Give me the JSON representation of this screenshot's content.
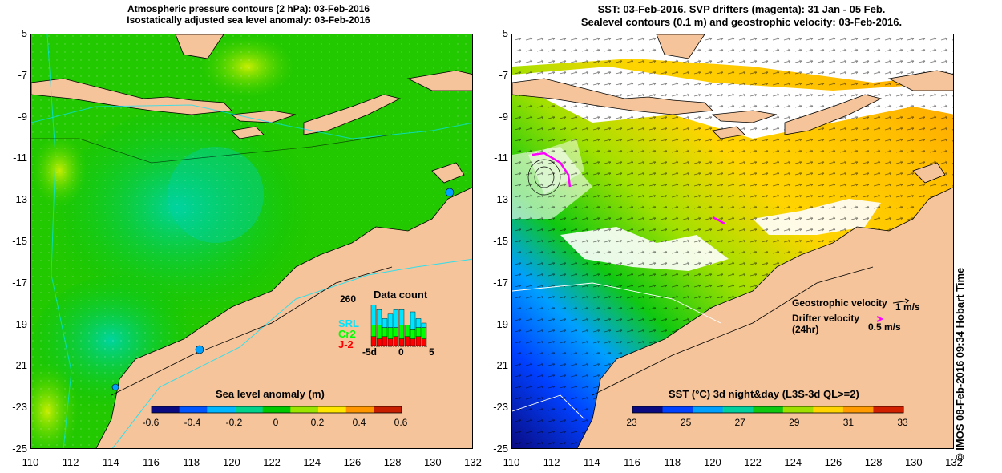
{
  "left_panel": {
    "title_line1": "Atmospheric pressure contours (2 hPa): 03-Feb-2016",
    "title_line2": "Isostatically adjusted sea level anomaly: 03-Feb-2016",
    "colorbar": {
      "title": "Sea level anomaly (m)",
      "ticks": [
        "-0.6",
        "-0.4",
        "-0.2",
        "0",
        "0.2",
        "0.4",
        "0.6"
      ]
    },
    "data_count": {
      "title": "Data count",
      "max_label": "260",
      "satellites": [
        {
          "label": "SRL",
          "color": "#00e5ff"
        },
        {
          "label": "Cr2",
          "color": "#00ff00"
        },
        {
          "label": "J-2",
          "color": "#ff0000"
        }
      ],
      "x_ticks": [
        "-5d",
        "0",
        "5"
      ],
      "bars": [
        {
          "j2": 0.2,
          "cr2": 0.25,
          "srl": 0.45
        },
        {
          "j2": 0.15,
          "cr2": 0.3,
          "srl": 0.35
        },
        {
          "j2": 0.2,
          "cr2": 0.2,
          "srl": 0.2
        },
        {
          "j2": 0.15,
          "cr2": 0.25,
          "srl": 0.3
        },
        {
          "j2": 0.2,
          "cr2": 0.2,
          "srl": 0.4
        },
        {
          "j2": 0.15,
          "cr2": 0.3,
          "srl": 0.35
        },
        {
          "j2": 0.2,
          "cr2": 0.25,
          "srl": 0.0
        },
        {
          "j2": 0.15,
          "cr2": 0.2,
          "srl": 0.4
        },
        {
          "j2": 0.2,
          "cr2": 0.2,
          "srl": 0.2
        },
        {
          "j2": 0.15,
          "cr2": 0.25,
          "srl": 0.1
        }
      ]
    }
  },
  "right_panel": {
    "title_line1": "SST: 03-Feb-2016. SVP drifters (magenta): 31 Jan - 05 Feb.",
    "title_line2": "Sealevel contours (0.1 m) and geostrophic velocity: 03-Feb-2016.",
    "colorbar": {
      "title": "SST (°C) 3d night&day (L3S-3d QL>=2)",
      "ticks": [
        "23",
        "25",
        "27",
        "29",
        "31",
        "33"
      ]
    },
    "legend": {
      "geostrophic_label": "Geostrophic velocity",
      "geostrophic_value": "1 m/s",
      "drifter_label_line1": "Drifter velocity",
      "drifter_label_line2": "(24hr)",
      "drifter_value": "0.5 m/s",
      "drifter_color": "#ff00ff"
    }
  },
  "axes": {
    "y_ticks": [
      "-5",
      "-7",
      "-9",
      "-11",
      "-13",
      "-15",
      "-17",
      "-19",
      "-21",
      "-23",
      "-25"
    ],
    "x_ticks": [
      "110",
      "112",
      "114",
      "116",
      "118",
      "120",
      "122",
      "124",
      "126",
      "128",
      "130",
      "132"
    ]
  },
  "credit": "© IMOS 08-Feb-2016 09:34 Hobart Time",
  "colors": {
    "land": "#f5c49a",
    "slaColors": [
      "#0a0a80",
      "#0055ff",
      "#00b7ff",
      "#00d28c",
      "#00c800",
      "#9be600",
      "#ffe600",
      "#ff9600",
      "#c81e00"
    ],
    "sstColors": [
      "#0a0a80",
      "#0040ff",
      "#00a0ff",
      "#00d0a0",
      "#10c810",
      "#a0e000",
      "#ffd400",
      "#ff9a00",
      "#d02000"
    ]
  }
}
